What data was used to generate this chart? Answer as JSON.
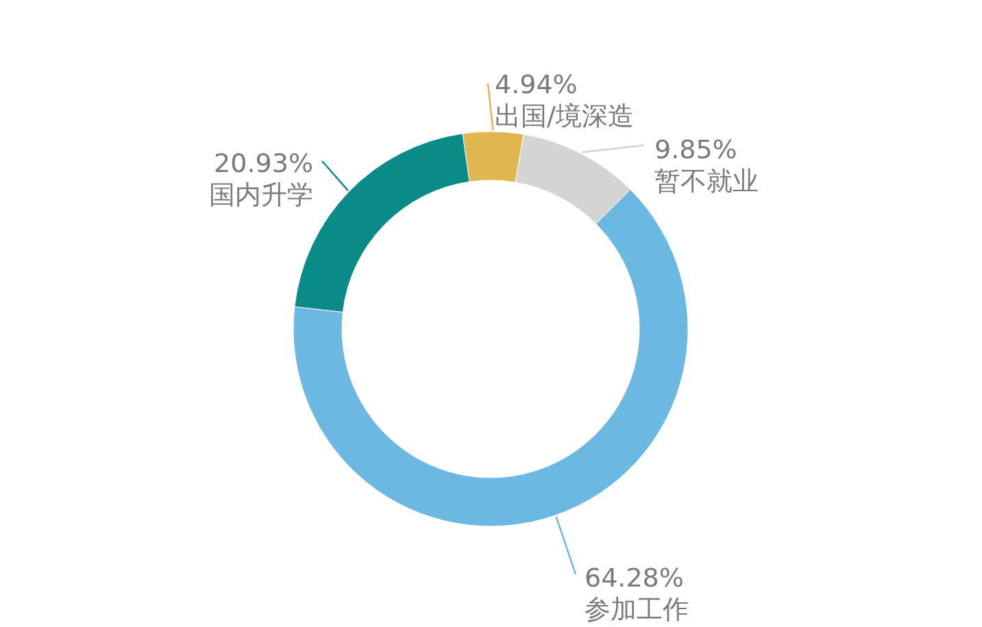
{
  "chart_data": {
    "type": "donut",
    "categories": [
      "出国/境深造",
      "暂不就业",
      "参加工作",
      "国内升学"
    ],
    "values": [
      4.94,
      9.85,
      64.28,
      20.93
    ],
    "value_labels": [
      "4.94%",
      "9.85%",
      "64.28%",
      "20.93%"
    ],
    "colors": [
      "#e2b64e",
      "#d4d4d4",
      "#6bb8e2",
      "#0a8b87"
    ]
  }
}
